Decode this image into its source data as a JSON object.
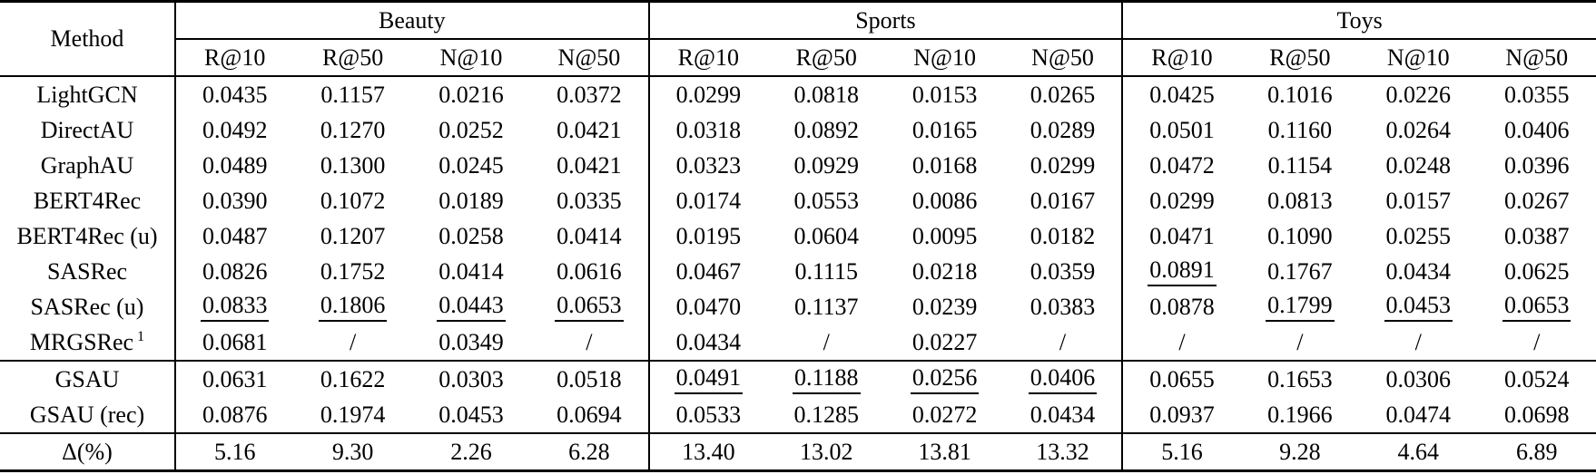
{
  "table": {
    "method_header": "Method",
    "groups": [
      "Beauty",
      "Sports",
      "Toys"
    ],
    "metrics": [
      "R@10",
      "R@50",
      "N@10",
      "N@50"
    ],
    "baseline_rows": [
      {
        "method": "LightGCN",
        "values": [
          "0.0435",
          "0.1157",
          "0.0216",
          "0.0372",
          "0.0299",
          "0.0818",
          "0.0153",
          "0.0265",
          "0.0425",
          "0.1016",
          "0.0226",
          "0.0355"
        ],
        "styles": [
          "",
          "",
          "",
          "",
          "",
          "",
          "",
          "",
          "",
          "",
          "",
          ""
        ]
      },
      {
        "method": "DirectAU",
        "values": [
          "0.0492",
          "0.1270",
          "0.0252",
          "0.0421",
          "0.0318",
          "0.0892",
          "0.0165",
          "0.0289",
          "0.0501",
          "0.1160",
          "0.0264",
          "0.0406"
        ],
        "styles": [
          "",
          "",
          "",
          "",
          "",
          "",
          "",
          "",
          "",
          "",
          "",
          ""
        ]
      },
      {
        "method": "GraphAU",
        "values": [
          "0.0489",
          "0.1300",
          "0.0245",
          "0.0421",
          "0.0323",
          "0.0929",
          "0.0168",
          "0.0299",
          "0.0472",
          "0.1154",
          "0.0248",
          "0.0396"
        ],
        "styles": [
          "",
          "",
          "",
          "",
          "",
          "",
          "",
          "",
          "",
          "",
          "",
          ""
        ]
      },
      {
        "method": "BERT4Rec",
        "values": [
          "0.0390",
          "0.1072",
          "0.0189",
          "0.0335",
          "0.0174",
          "0.0553",
          "0.0086",
          "0.0167",
          "0.0299",
          "0.0813",
          "0.0157",
          "0.0267"
        ],
        "styles": [
          "",
          "",
          "",
          "",
          "",
          "",
          "",
          "",
          "",
          "",
          "",
          ""
        ]
      },
      {
        "method": "BERT4Rec (u)",
        "values": [
          "0.0487",
          "0.1207",
          "0.0258",
          "0.0414",
          "0.0195",
          "0.0604",
          "0.0095",
          "0.0182",
          "0.0471",
          "0.1090",
          "0.0255",
          "0.0387"
        ],
        "styles": [
          "",
          "",
          "",
          "",
          "",
          "",
          "",
          "",
          "",
          "",
          "",
          ""
        ]
      },
      {
        "method": "SASRec",
        "values": [
          "0.0826",
          "0.1752",
          "0.0414",
          "0.0616",
          "0.0467",
          "0.1115",
          "0.0218",
          "0.0359",
          "0.0891",
          "0.1767",
          "0.0434",
          "0.0625"
        ],
        "styles": [
          "",
          "",
          "",
          "",
          "",
          "",
          "",
          "",
          "u",
          "",
          "",
          ""
        ]
      },
      {
        "method": "SASRec (u)",
        "values": [
          "0.0833",
          "0.1806",
          "0.0443",
          "0.0653",
          "0.0470",
          "0.1137",
          "0.0239",
          "0.0383",
          "0.0878",
          "0.1799",
          "0.0453",
          "0.0653"
        ],
        "styles": [
          "u",
          "u",
          "u",
          "u",
          "",
          "",
          "",
          "",
          "",
          "u",
          "u",
          "u"
        ]
      },
      {
        "method": "MRGSRec",
        "footnote": "1",
        "values": [
          "0.0681",
          "/",
          "0.0349",
          "/",
          "0.0434",
          "/",
          "0.0227",
          "/",
          "/",
          "/",
          "/",
          "/"
        ],
        "styles": [
          "",
          "",
          "",
          "",
          "",
          "",
          "",
          "",
          "",
          "",
          "",
          ""
        ]
      }
    ],
    "ours_rows": [
      {
        "method": "GSAU",
        "values": [
          "0.0631",
          "0.1622",
          "0.0303",
          "0.0518",
          "0.0491",
          "0.1188",
          "0.0256",
          "0.0406",
          "0.0655",
          "0.1653",
          "0.0306",
          "0.0524"
        ],
        "styles": [
          "",
          "",
          "",
          "",
          "u",
          "u",
          "u",
          "u",
          "",
          "",
          "",
          ""
        ]
      },
      {
        "method": "GSAU (rec)",
        "values": [
          "0.0876",
          "0.1974",
          "0.0453",
          "0.0694",
          "0.0533",
          "0.1285",
          "0.0272",
          "0.0434",
          "0.0937",
          "0.1966",
          "0.0474",
          "0.0698"
        ],
        "styles": [
          "b",
          "b",
          "b",
          "b",
          "b",
          "b",
          "b",
          "b",
          "b",
          "b",
          "b",
          "b"
        ]
      }
    ],
    "delta_row": {
      "label": "Δ(%)",
      "values": [
        "5.16",
        "9.30",
        "2.26",
        "6.28",
        "13.40",
        "13.02",
        "13.81",
        "13.32",
        "5.16",
        "9.28",
        "4.64",
        "6.89"
      ]
    }
  }
}
